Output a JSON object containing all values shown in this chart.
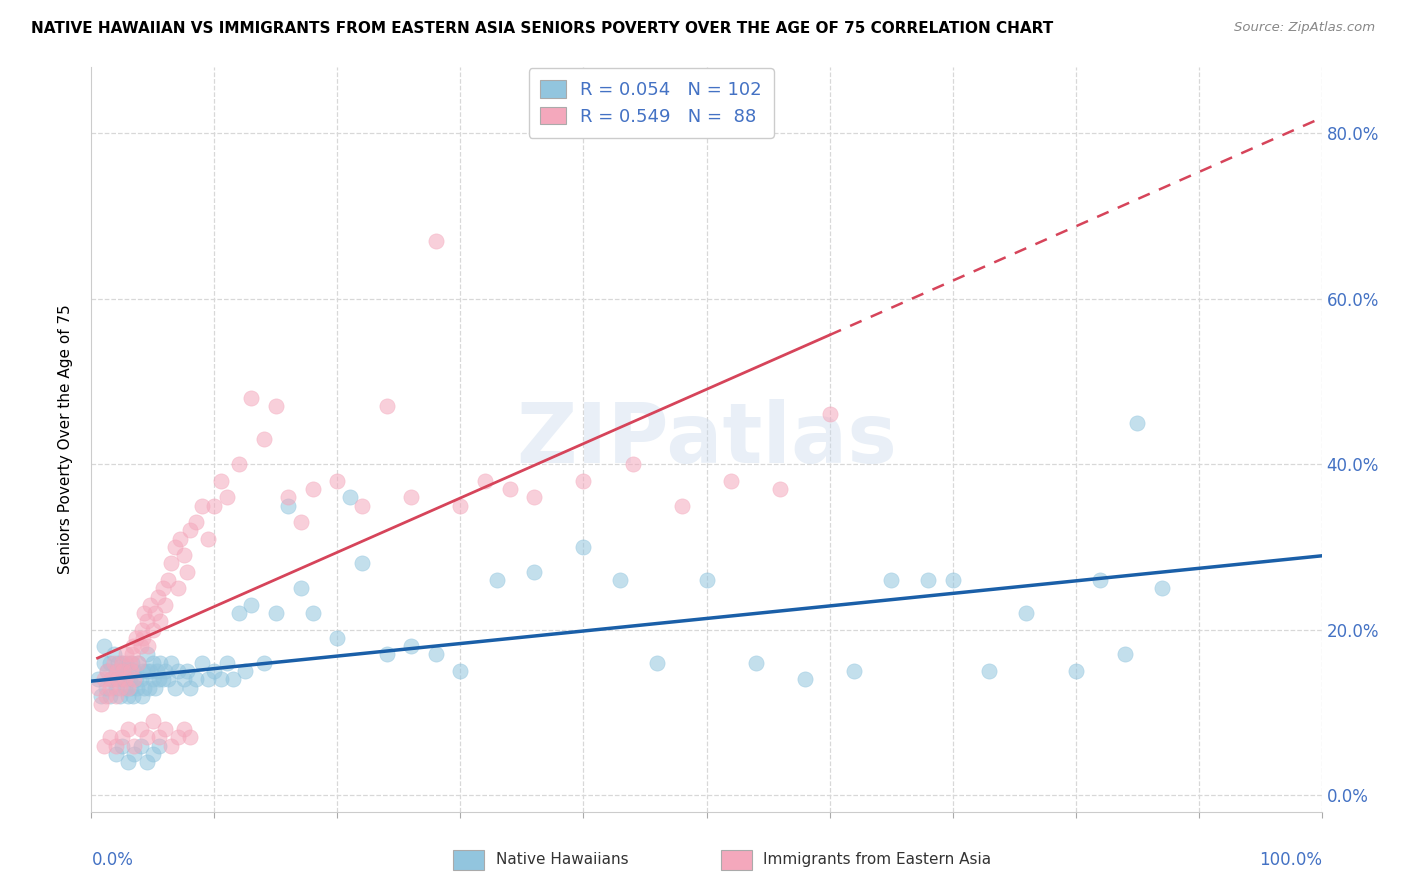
{
  "title": "NATIVE HAWAIIAN VS IMMIGRANTS FROM EASTERN ASIA SENIORS POVERTY OVER THE AGE OF 75 CORRELATION CHART",
  "source": "Source: ZipAtlas.com",
  "ylabel": "Seniors Poverty Over the Age of 75",
  "xlim": [
    0.0,
    1.0
  ],
  "ylim": [
    -0.02,
    0.88
  ],
  "yticks": [
    0.0,
    0.2,
    0.4,
    0.6,
    0.8
  ],
  "ytick_labels": [
    "0.0%",
    "20.0%",
    "40.0%",
    "60.0%",
    "80.0%"
  ],
  "color_blue": "#92c5de",
  "color_pink": "#f4a8bc",
  "color_line_blue": "#1a5fa8",
  "color_line_pink": "#d6445a",
  "R_blue": 0.054,
  "N_blue": 102,
  "R_pink": 0.549,
  "N_pink": 88,
  "legend_label_blue": "Native Hawaiians",
  "legend_label_pink": "Immigrants from Eastern Asia",
  "watermark": "ZIPatlas",
  "title_fontsize": 11,
  "scatter_alpha": 0.55,
  "scatter_size": 120,
  "blue_x": [
    0.005,
    0.008,
    0.01,
    0.01,
    0.012,
    0.013,
    0.015,
    0.015,
    0.016,
    0.018,
    0.02,
    0.02,
    0.021,
    0.022,
    0.023,
    0.025,
    0.025,
    0.026,
    0.027,
    0.028,
    0.03,
    0.03,
    0.031,
    0.032,
    0.033,
    0.034,
    0.035,
    0.036,
    0.037,
    0.038,
    0.04,
    0.041,
    0.042,
    0.043,
    0.045,
    0.045,
    0.047,
    0.048,
    0.05,
    0.05,
    0.052,
    0.053,
    0.055,
    0.056,
    0.058,
    0.06,
    0.062,
    0.065,
    0.068,
    0.07,
    0.075,
    0.078,
    0.08,
    0.085,
    0.09,
    0.095,
    0.1,
    0.105,
    0.11,
    0.115,
    0.12,
    0.125,
    0.13,
    0.14,
    0.15,
    0.16,
    0.17,
    0.18,
    0.2,
    0.21,
    0.22,
    0.24,
    0.26,
    0.28,
    0.3,
    0.33,
    0.36,
    0.4,
    0.43,
    0.46,
    0.5,
    0.54,
    0.58,
    0.62,
    0.65,
    0.68,
    0.7,
    0.73,
    0.76,
    0.8,
    0.82,
    0.84,
    0.85,
    0.87,
    0.02,
    0.025,
    0.03,
    0.035,
    0.04,
    0.045,
    0.05,
    0.055
  ],
  "blue_y": [
    0.14,
    0.12,
    0.16,
    0.18,
    0.13,
    0.15,
    0.12,
    0.16,
    0.14,
    0.17,
    0.13,
    0.15,
    0.14,
    0.16,
    0.12,
    0.14,
    0.16,
    0.15,
    0.13,
    0.16,
    0.12,
    0.15,
    0.14,
    0.13,
    0.16,
    0.12,
    0.15,
    0.14,
    0.13,
    0.16,
    0.14,
    0.12,
    0.15,
    0.13,
    0.15,
    0.17,
    0.13,
    0.15,
    0.14,
    0.16,
    0.13,
    0.15,
    0.14,
    0.16,
    0.14,
    0.15,
    0.14,
    0.16,
    0.13,
    0.15,
    0.14,
    0.15,
    0.13,
    0.14,
    0.16,
    0.14,
    0.15,
    0.14,
    0.16,
    0.14,
    0.22,
    0.15,
    0.23,
    0.16,
    0.22,
    0.35,
    0.25,
    0.22,
    0.19,
    0.36,
    0.28,
    0.17,
    0.18,
    0.17,
    0.15,
    0.26,
    0.27,
    0.3,
    0.26,
    0.16,
    0.26,
    0.16,
    0.14,
    0.15,
    0.26,
    0.26,
    0.26,
    0.15,
    0.22,
    0.15,
    0.26,
    0.17,
    0.45,
    0.25,
    0.05,
    0.06,
    0.04,
    0.05,
    0.06,
    0.04,
    0.05,
    0.06
  ],
  "pink_x": [
    0.005,
    0.008,
    0.01,
    0.012,
    0.013,
    0.015,
    0.016,
    0.018,
    0.02,
    0.021,
    0.022,
    0.023,
    0.025,
    0.026,
    0.027,
    0.028,
    0.03,
    0.031,
    0.032,
    0.033,
    0.034,
    0.035,
    0.036,
    0.038,
    0.04,
    0.041,
    0.042,
    0.043,
    0.045,
    0.046,
    0.048,
    0.05,
    0.052,
    0.054,
    0.056,
    0.058,
    0.06,
    0.062,
    0.065,
    0.068,
    0.07,
    0.072,
    0.075,
    0.078,
    0.08,
    0.085,
    0.09,
    0.095,
    0.1,
    0.105,
    0.11,
    0.12,
    0.13,
    0.14,
    0.15,
    0.16,
    0.17,
    0.18,
    0.2,
    0.22,
    0.24,
    0.26,
    0.28,
    0.3,
    0.32,
    0.34,
    0.36,
    0.4,
    0.44,
    0.48,
    0.52,
    0.56,
    0.6,
    0.01,
    0.015,
    0.02,
    0.025,
    0.03,
    0.035,
    0.04,
    0.045,
    0.05,
    0.055,
    0.06,
    0.065,
    0.07,
    0.075,
    0.08
  ],
  "pink_y": [
    0.13,
    0.11,
    0.14,
    0.12,
    0.15,
    0.13,
    0.14,
    0.16,
    0.12,
    0.15,
    0.14,
    0.13,
    0.16,
    0.15,
    0.14,
    0.17,
    0.13,
    0.16,
    0.15,
    0.17,
    0.18,
    0.14,
    0.19,
    0.16,
    0.18,
    0.2,
    0.19,
    0.22,
    0.21,
    0.18,
    0.23,
    0.2,
    0.22,
    0.24,
    0.21,
    0.25,
    0.23,
    0.26,
    0.28,
    0.3,
    0.25,
    0.31,
    0.29,
    0.27,
    0.32,
    0.33,
    0.35,
    0.31,
    0.35,
    0.38,
    0.36,
    0.4,
    0.48,
    0.43,
    0.47,
    0.36,
    0.33,
    0.37,
    0.38,
    0.35,
    0.47,
    0.36,
    0.67,
    0.35,
    0.38,
    0.37,
    0.36,
    0.38,
    0.4,
    0.35,
    0.38,
    0.37,
    0.46,
    0.06,
    0.07,
    0.06,
    0.07,
    0.08,
    0.06,
    0.08,
    0.07,
    0.09,
    0.07,
    0.08,
    0.06,
    0.07,
    0.08,
    0.07
  ]
}
